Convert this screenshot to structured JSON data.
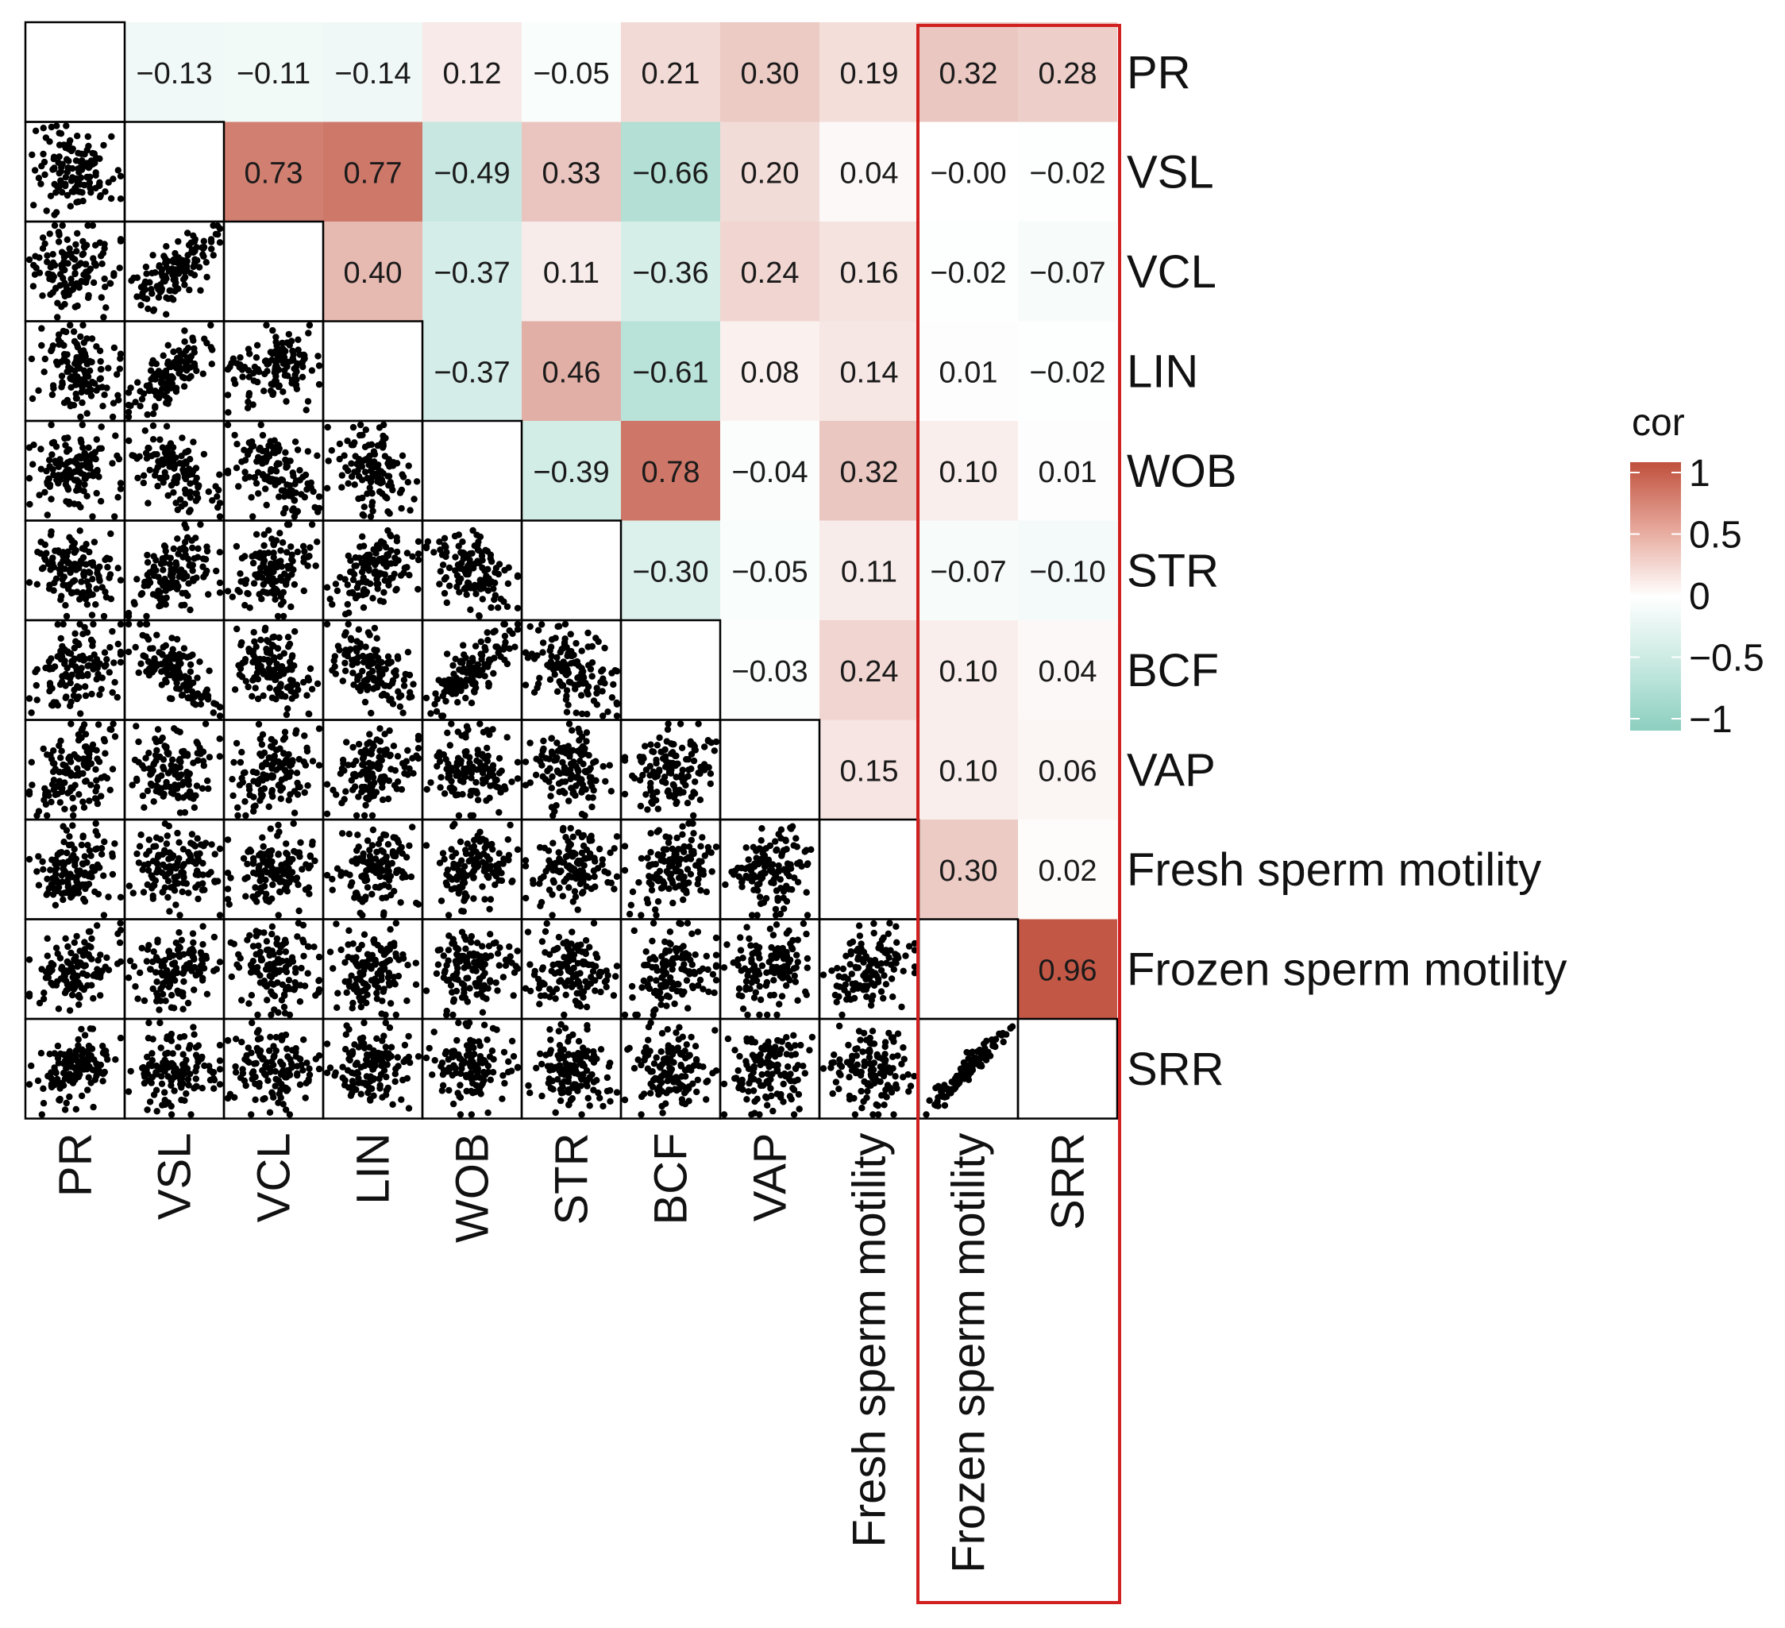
{
  "chart_data": {
    "type": "heatmap",
    "title": "",
    "variables": [
      "PR",
      "VSL",
      "VCL",
      "LIN",
      "WOB",
      "STR",
      "BCF",
      "VAP",
      "Fresh sperm motility",
      "Frozen sperm motility",
      "SRR"
    ],
    "upper_triangle": "correlation coefficient tiles",
    "lower_triangle": "pairwise scatter plots",
    "correlations": [
      {
        "row": "PR",
        "col": "VSL",
        "value": -0.13,
        "label": "−0.13"
      },
      {
        "row": "PR",
        "col": "VCL",
        "value": -0.11,
        "label": "−0.11"
      },
      {
        "row": "PR",
        "col": "LIN",
        "value": -0.14,
        "label": "−0.14"
      },
      {
        "row": "PR",
        "col": "WOB",
        "value": 0.12,
        "label": "0.12"
      },
      {
        "row": "PR",
        "col": "STR",
        "value": -0.05,
        "label": "−0.05"
      },
      {
        "row": "PR",
        "col": "BCF",
        "value": 0.21,
        "label": "0.21"
      },
      {
        "row": "PR",
        "col": "VAP",
        "value": 0.3,
        "label": "0.30"
      },
      {
        "row": "PR",
        "col": "Fresh sperm motility",
        "value": 0.19,
        "label": "0.19"
      },
      {
        "row": "PR",
        "col": "Frozen sperm motility",
        "value": 0.32,
        "label": "0.32"
      },
      {
        "row": "PR",
        "col": "SRR",
        "value": 0.28,
        "label": "0.28"
      },
      {
        "row": "VSL",
        "col": "VCL",
        "value": 0.73,
        "label": "0.73"
      },
      {
        "row": "VSL",
        "col": "LIN",
        "value": 0.77,
        "label": "0.77"
      },
      {
        "row": "VSL",
        "col": "WOB",
        "value": -0.49,
        "label": "−0.49"
      },
      {
        "row": "VSL",
        "col": "STR",
        "value": 0.33,
        "label": "0.33"
      },
      {
        "row": "VSL",
        "col": "BCF",
        "value": -0.66,
        "label": "−0.66"
      },
      {
        "row": "VSL",
        "col": "VAP",
        "value": 0.2,
        "label": "0.20"
      },
      {
        "row": "VSL",
        "col": "Fresh sperm motility",
        "value": 0.04,
        "label": "0.04"
      },
      {
        "row": "VSL",
        "col": "Frozen sperm motility",
        "value": 0.0,
        "label": "−0.00"
      },
      {
        "row": "VSL",
        "col": "SRR",
        "value": -0.02,
        "label": "−0.02"
      },
      {
        "row": "VCL",
        "col": "LIN",
        "value": 0.4,
        "label": "0.40"
      },
      {
        "row": "VCL",
        "col": "WOB",
        "value": -0.37,
        "label": "−0.37"
      },
      {
        "row": "VCL",
        "col": "STR",
        "value": 0.11,
        "label": "0.11"
      },
      {
        "row": "VCL",
        "col": "BCF",
        "value": -0.36,
        "label": "−0.36"
      },
      {
        "row": "VCL",
        "col": "VAP",
        "value": 0.24,
        "label": "0.24"
      },
      {
        "row": "VCL",
        "col": "Fresh sperm motility",
        "value": 0.16,
        "label": "0.16"
      },
      {
        "row": "VCL",
        "col": "Frozen sperm motility",
        "value": -0.02,
        "label": "−0.02"
      },
      {
        "row": "VCL",
        "col": "SRR",
        "value": -0.07,
        "label": "−0.07"
      },
      {
        "row": "LIN",
        "col": "WOB",
        "value": -0.37,
        "label": "−0.37"
      },
      {
        "row": "LIN",
        "col": "STR",
        "value": 0.46,
        "label": "0.46"
      },
      {
        "row": "LIN",
        "col": "BCF",
        "value": -0.61,
        "label": "−0.61"
      },
      {
        "row": "LIN",
        "col": "VAP",
        "value": 0.08,
        "label": "0.08"
      },
      {
        "row": "LIN",
        "col": "Fresh sperm motility",
        "value": 0.14,
        "label": "0.14"
      },
      {
        "row": "LIN",
        "col": "Frozen sperm motility",
        "value": 0.01,
        "label": "0.01"
      },
      {
        "row": "LIN",
        "col": "SRR",
        "value": -0.02,
        "label": "−0.02"
      },
      {
        "row": "WOB",
        "col": "STR",
        "value": -0.39,
        "label": "−0.39"
      },
      {
        "row": "WOB",
        "col": "BCF",
        "value": 0.78,
        "label": "0.78"
      },
      {
        "row": "WOB",
        "col": "VAP",
        "value": -0.04,
        "label": "−0.04"
      },
      {
        "row": "WOB",
        "col": "Fresh sperm motility",
        "value": 0.32,
        "label": "0.32"
      },
      {
        "row": "WOB",
        "col": "Frozen sperm motility",
        "value": 0.1,
        "label": "0.10"
      },
      {
        "row": "WOB",
        "col": "SRR",
        "value": 0.01,
        "label": "0.01"
      },
      {
        "row": "STR",
        "col": "BCF",
        "value": -0.3,
        "label": "−0.30"
      },
      {
        "row": "STR",
        "col": "VAP",
        "value": -0.05,
        "label": "−0.05"
      },
      {
        "row": "STR",
        "col": "Fresh sperm motility",
        "value": 0.11,
        "label": "0.11"
      },
      {
        "row": "STR",
        "col": "Frozen sperm motility",
        "value": -0.07,
        "label": "−0.07"
      },
      {
        "row": "STR",
        "col": "SRR",
        "value": -0.1,
        "label": "−0.10"
      },
      {
        "row": "BCF",
        "col": "VAP",
        "value": -0.03,
        "label": "−0.03"
      },
      {
        "row": "BCF",
        "col": "Fresh sperm motility",
        "value": 0.24,
        "label": "0.24"
      },
      {
        "row": "BCF",
        "col": "Frozen sperm motility",
        "value": 0.1,
        "label": "0.10"
      },
      {
        "row": "BCF",
        "col": "SRR",
        "value": 0.04,
        "label": "0.04"
      },
      {
        "row": "VAP",
        "col": "Fresh sperm motility",
        "value": 0.15,
        "label": "0.15"
      },
      {
        "row": "VAP",
        "col": "Frozen sperm motility",
        "value": 0.1,
        "label": "0.10"
      },
      {
        "row": "VAP",
        "col": "SRR",
        "value": 0.06,
        "label": "0.06"
      },
      {
        "row": "Fresh sperm motility",
        "col": "Frozen sperm motility",
        "value": 0.3,
        "label": "0.30"
      },
      {
        "row": "Fresh sperm motility",
        "col": "SRR",
        "value": 0.02,
        "label": "0.02"
      },
      {
        "row": "Frozen sperm motility",
        "col": "SRR",
        "value": 0.96,
        "label": "0.96"
      }
    ],
    "legend": {
      "title": "cor",
      "position": "right",
      "ticks": [
        {
          "value": 1,
          "label": "1"
        },
        {
          "value": 0.5,
          "label": "0.5"
        },
        {
          "value": 0,
          "label": "0"
        },
        {
          "value": -0.5,
          "label": "−0.5"
        },
        {
          "value": -1,
          "label": "−1"
        }
      ],
      "range": [
        -1,
        1
      ]
    },
    "colors": {
      "positive": "#c0503d",
      "zero": "#ffffff",
      "negative": "#8ccfc0",
      "highlight_box": "#d02020",
      "points": "#000000",
      "grid": "#000000"
    },
    "highlight": {
      "columns": [
        "Frozen sperm motility",
        "SRR"
      ],
      "style": "red outline"
    }
  }
}
